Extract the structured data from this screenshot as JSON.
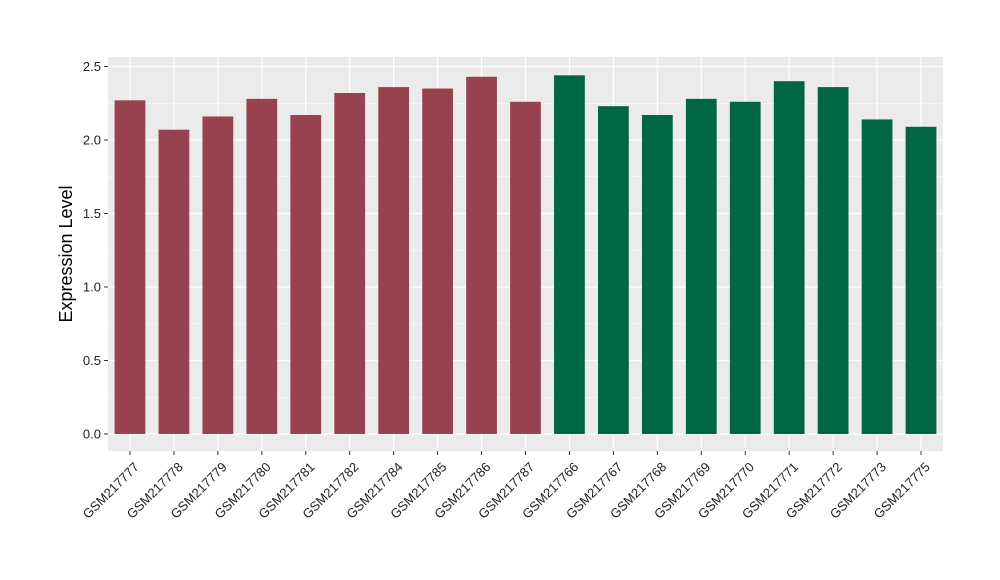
{
  "chart_data": {
    "type": "bar",
    "title": "",
    "xlabel": "",
    "ylabel": "Expression Level",
    "ylim": [
      0,
      2.53
    ],
    "yticks": [
      "0.0",
      "0.5",
      "1.0",
      "1.5",
      "2.0",
      "2.5"
    ],
    "grid": true,
    "categories": [
      "GSM217777",
      "GSM217778",
      "GSM217779",
      "GSM217780",
      "GSM217781",
      "GSM217782",
      "GSM217784",
      "GSM217785",
      "GSM217786",
      "GSM217787",
      "GSM217766",
      "GSM217767",
      "GSM217768",
      "GSM217769",
      "GSM217770",
      "GSM217771",
      "GSM217772",
      "GSM217773",
      "GSM217775"
    ],
    "values": [
      2.27,
      2.07,
      2.16,
      2.28,
      2.17,
      2.32,
      2.36,
      2.35,
      2.43,
      2.26,
      2.44,
      2.23,
      2.17,
      2.28,
      2.26,
      2.4,
      2.36,
      2.14,
      2.09
    ],
    "bar_colors": [
      "#99424F",
      "#99424F",
      "#99424F",
      "#99424F",
      "#99424F",
      "#99424F",
      "#99424F",
      "#99424F",
      "#99424F",
      "#99424F",
      "#006645",
      "#006645",
      "#006645",
      "#006645",
      "#006645",
      "#006645",
      "#006645",
      "#006645",
      "#006645"
    ],
    "panel_background": "#EBEBEB",
    "grid_color": "#FFFFFF"
  }
}
